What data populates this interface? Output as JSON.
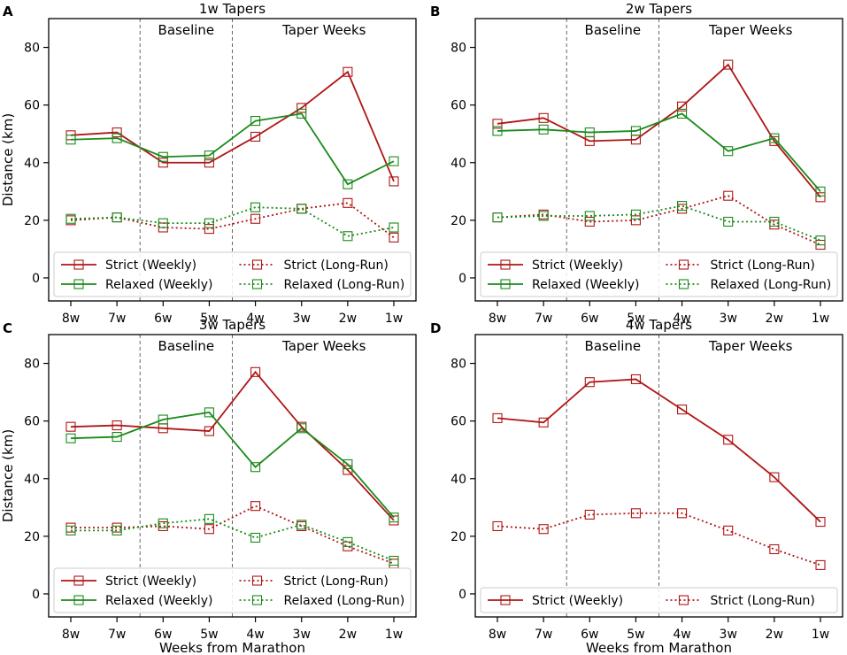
{
  "colors": {
    "strict": "#b01515",
    "relaxed": "#1a8a1a",
    "divider": "#666666",
    "legend_border": "#cccccc"
  },
  "common": {
    "xlabel": "Weeks from Marathon",
    "ylabel": "Distance (km)",
    "categories": [
      "8w",
      "7w",
      "6w",
      "5w",
      "4w",
      "3w",
      "2w",
      "1w"
    ],
    "yticks": [
      "0",
      "20",
      "40",
      "60",
      "80"
    ],
    "baseline_label": "Baseline",
    "taper_label": "Taper Weeks"
  },
  "chart_data": [
    {
      "type": "line",
      "panel": "A",
      "title": "1w Tapers",
      "categories": [
        "8w",
        "7w",
        "6w",
        "5w",
        "4w",
        "3w",
        "2w",
        "1w"
      ],
      "ylim": [
        -8,
        90
      ],
      "legend_position": "bottom",
      "series": [
        {
          "name": "Strict (Weekly)",
          "color_key": "strict",
          "style": "solid",
          "values": [
            49.5,
            50.5,
            40,
            40,
            49,
            59,
            71.5,
            33.5
          ]
        },
        {
          "name": "Strict (Long-Run)",
          "color_key": "strict",
          "style": "dotted",
          "values": [
            20,
            21,
            17.5,
            17,
            20.5,
            24,
            26,
            14
          ]
        },
        {
          "name": "Relaxed (Weekly)",
          "color_key": "relaxed",
          "style": "solid",
          "values": [
            48,
            48.5,
            42,
            42.5,
            54.5,
            57,
            32.5,
            40.5
          ]
        },
        {
          "name": "Relaxed (Long-Run)",
          "color_key": "relaxed",
          "style": "dotted",
          "values": [
            20.5,
            21,
            19,
            19,
            24.5,
            24,
            14.5,
            17.5
          ]
        }
      ]
    },
    {
      "type": "line",
      "panel": "B",
      "title": "2w Tapers",
      "categories": [
        "8w",
        "7w",
        "6w",
        "5w",
        "4w",
        "3w",
        "2w",
        "1w"
      ],
      "ylim": [
        -8,
        90
      ],
      "legend_position": "bottom",
      "series": [
        {
          "name": "Strict (Weekly)",
          "color_key": "strict",
          "style": "solid",
          "values": [
            53.5,
            55.5,
            47.5,
            48,
            59.5,
            74,
            47.5,
            28
          ]
        },
        {
          "name": "Strict (Long-Run)",
          "color_key": "strict",
          "style": "dotted",
          "values": [
            21,
            22,
            19.5,
            20,
            24,
            28.5,
            18.5,
            11.5
          ]
        },
        {
          "name": "Relaxed (Weekly)",
          "color_key": "relaxed",
          "style": "solid",
          "values": [
            51,
            51.5,
            50.5,
            51,
            57,
            44,
            48.5,
            30
          ]
        },
        {
          "name": "Relaxed (Long-Run)",
          "color_key": "relaxed",
          "style": "dotted",
          "values": [
            21,
            21.5,
            21.5,
            22,
            25,
            19.5,
            19.5,
            13
          ]
        }
      ]
    },
    {
      "type": "line",
      "panel": "C",
      "title": "3w Tapers",
      "categories": [
        "8w",
        "7w",
        "6w",
        "5w",
        "4w",
        "3w",
        "2w",
        "1w"
      ],
      "ylim": [
        -8,
        90
      ],
      "legend_position": "bottom",
      "series": [
        {
          "name": "Strict (Weekly)",
          "color_key": "strict",
          "style": "solid",
          "values": [
            58,
            58.5,
            57.5,
            56.5,
            77,
            58,
            43,
            25.5
          ]
        },
        {
          "name": "Strict (Long-Run)",
          "color_key": "strict",
          "style": "dotted",
          "values": [
            23,
            23,
            23.5,
            22.5,
            30.5,
            23.5,
            16.5,
            10.5
          ]
        },
        {
          "name": "Relaxed (Weekly)",
          "color_key": "relaxed",
          "style": "solid",
          "values": [
            54,
            54.5,
            60.5,
            63,
            44,
            57.5,
            45,
            26.5
          ]
        },
        {
          "name": "Relaxed (Long-Run)",
          "color_key": "relaxed",
          "style": "dotted",
          "values": [
            22,
            22,
            24.5,
            26,
            19.5,
            24,
            18,
            11.5
          ]
        }
      ]
    },
    {
      "type": "line",
      "panel": "D",
      "title": "4w Tapers",
      "categories": [
        "8w",
        "7w",
        "6w",
        "5w",
        "4w",
        "3w",
        "2w",
        "1w"
      ],
      "ylim": [
        -8,
        90
      ],
      "legend_position": "bottom",
      "series": [
        {
          "name": "Strict (Weekly)",
          "color_key": "strict",
          "style": "solid",
          "values": [
            61,
            59.5,
            73.5,
            74.5,
            64,
            53.5,
            40.5,
            25
          ]
        },
        {
          "name": "Strict (Long-Run)",
          "color_key": "strict",
          "style": "dotted",
          "values": [
            23.5,
            22.5,
            27.5,
            28,
            28,
            22,
            15.5,
            10
          ]
        }
      ]
    }
  ]
}
